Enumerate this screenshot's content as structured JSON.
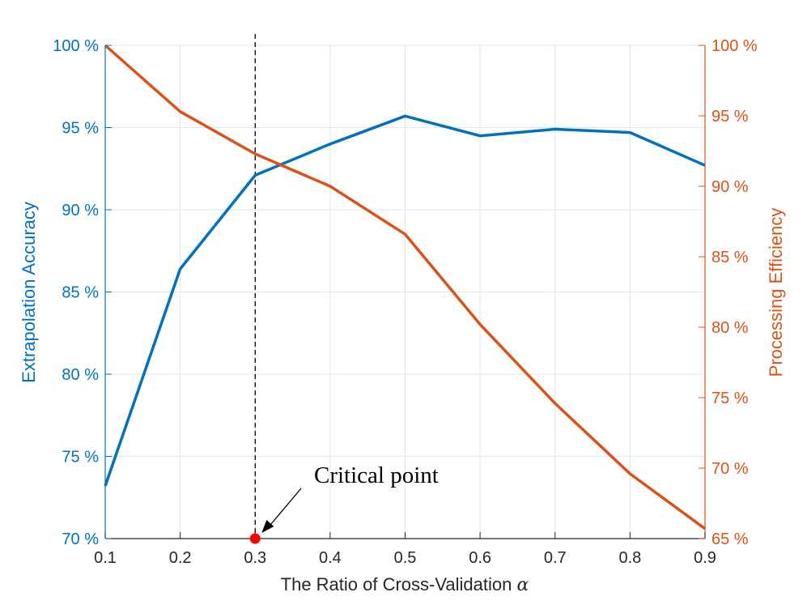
{
  "chart_data": {
    "type": "line",
    "xlabel": "The Ratio of Cross-Validation",
    "xlabel_symbol": "α",
    "ylabel_left": "Extrapolation Accuracy",
    "ylabel_right": "Processing Efficiency",
    "x": [
      0.1,
      0.2,
      0.3,
      0.4,
      0.5,
      0.6,
      0.7,
      0.8,
      0.9
    ],
    "xlim": [
      0.1,
      0.9
    ],
    "ylim_left": [
      70,
      100
    ],
    "ylim_right": [
      65,
      100
    ],
    "x_ticks": [
      "0.1",
      "0.2",
      "0.3",
      "0.4",
      "0.5",
      "0.6",
      "0.7",
      "0.8",
      "0.9"
    ],
    "y_left_ticks": [
      70,
      75,
      80,
      85,
      90,
      95,
      100
    ],
    "y_left_tick_labels": [
      "70 %",
      "75 %",
      "80 %",
      "85 %",
      "90 %",
      "95 %",
      "100 %"
    ],
    "y_right_ticks": [
      65,
      70,
      75,
      80,
      85,
      90,
      95,
      100
    ],
    "y_right_tick_labels": [
      "65 %",
      "70 %",
      "75 %",
      "80 %",
      "85 %",
      "90 %",
      "95 %",
      "100 %"
    ],
    "grid": true,
    "series": [
      {
        "axis": "left",
        "color": "#0072BD",
        "values": [
          73.2,
          86.4,
          92.1,
          94.0,
          95.7,
          94.5,
          94.9,
          94.7,
          92.7
        ]
      },
      {
        "axis": "right",
        "color": "#D95319",
        "values": [
          100.0,
          95.3,
          92.3,
          90.0,
          86.6,
          80.2,
          74.6,
          69.6,
          65.7
        ]
      }
    ],
    "reference_line": {
      "x": 0.3,
      "style": "dashed",
      "color": "#000000"
    },
    "marker": {
      "x": 0.3,
      "y_left": 70,
      "color": "#FF0000"
    },
    "annotation": {
      "text": "Critical point",
      "x": 0.3,
      "y_left": 70
    }
  },
  "colors": {
    "left_axis": "#0072BD",
    "right_axis": "#D95319",
    "bottom_axis": "#262626",
    "grid": "#DFE6EE"
  }
}
